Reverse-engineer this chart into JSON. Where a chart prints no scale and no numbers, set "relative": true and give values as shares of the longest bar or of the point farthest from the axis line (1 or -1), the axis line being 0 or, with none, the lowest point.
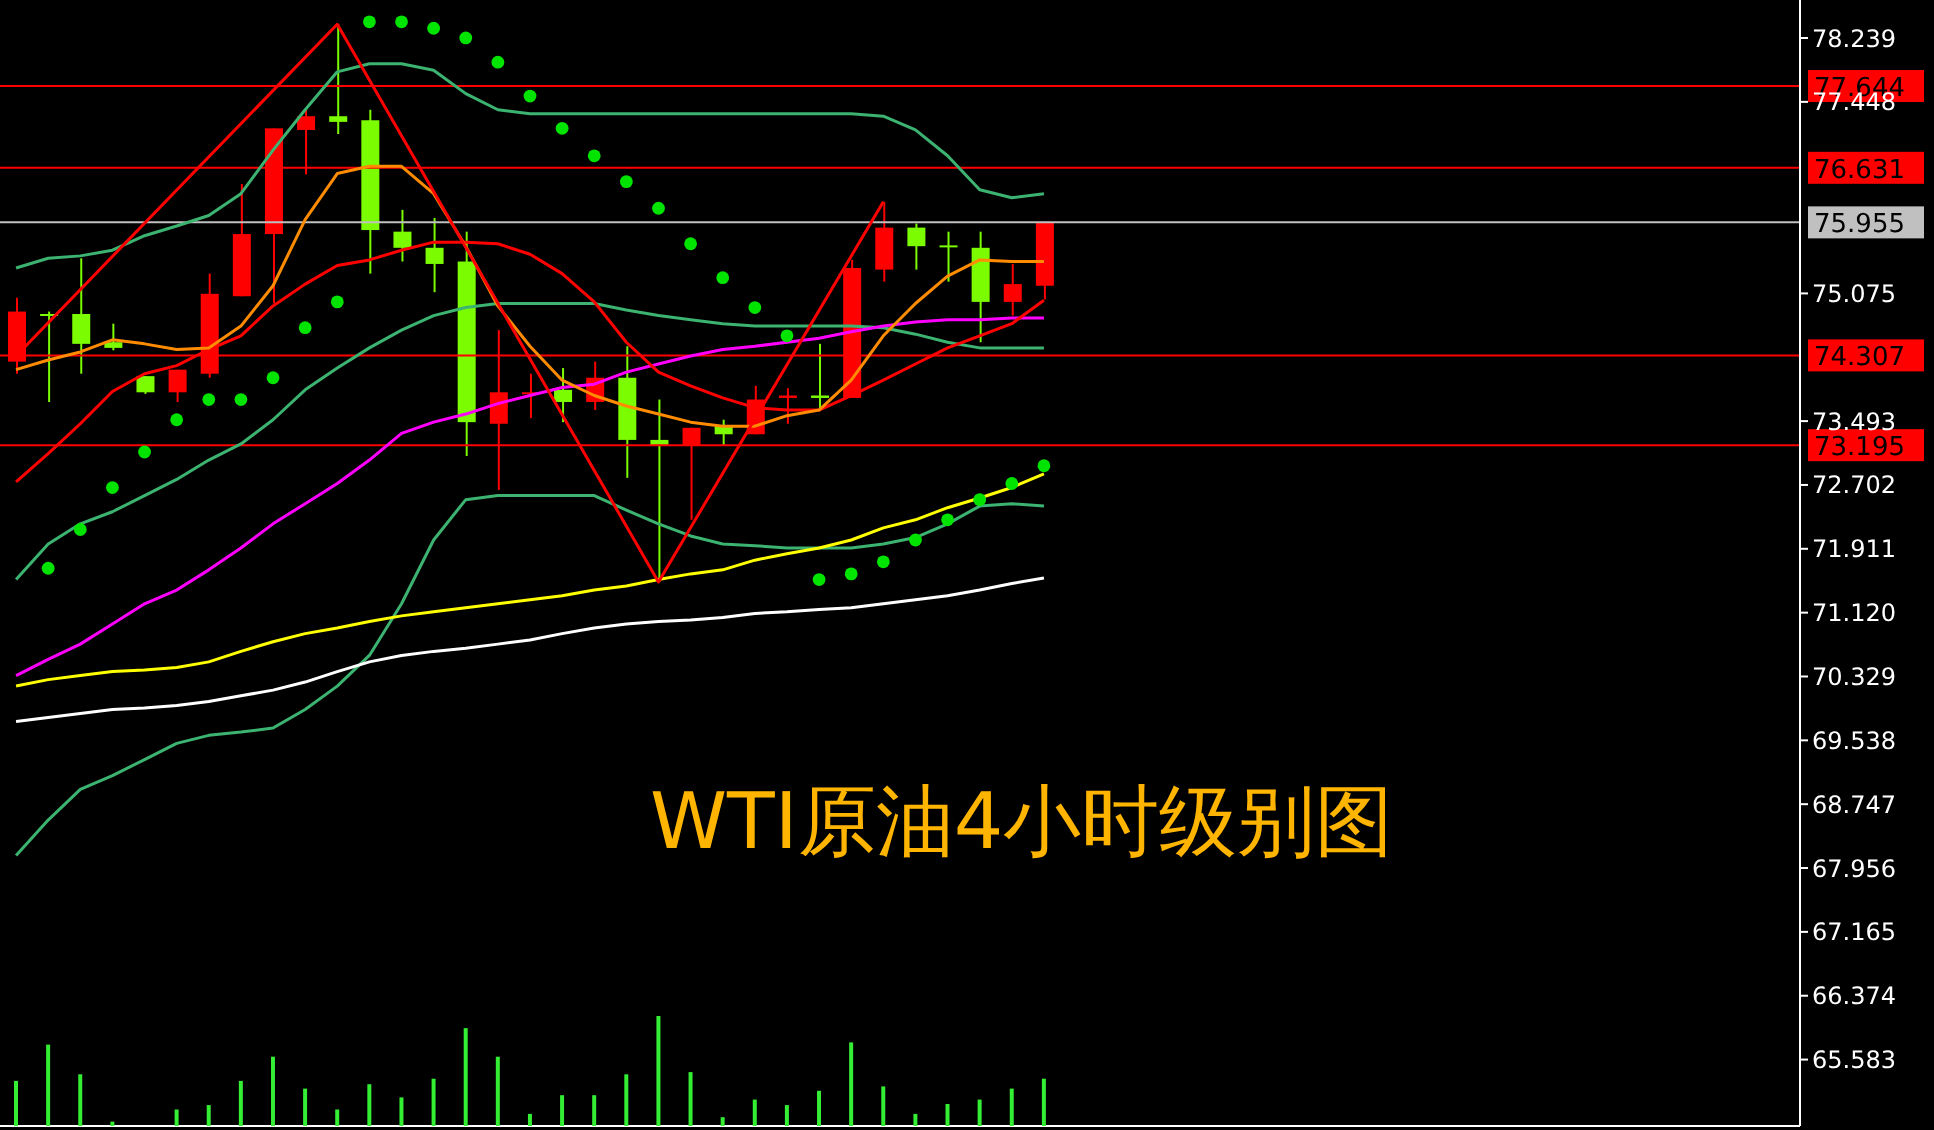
{
  "chart_data": [
    {
      "type": "candlestick",
      "title": "WTI原油4小时级别图",
      "tick_labels": "y",
      "categories": [
        null,
        null,
        null,
        null,
        null,
        null,
        null,
        null,
        null,
        null,
        null,
        null,
        null,
        null,
        null,
        null,
        null,
        null,
        null,
        null,
        null,
        null,
        null,
        null,
        null,
        null,
        null,
        null,
        null,
        null,
        null,
        null,
        null
      ],
      "ylim": [
        64.76,
        78.71
      ],
      "yticks": [
        78.239,
        77.448,
        75.075,
        73.493,
        72.702,
        71.911,
        {
          "value": 71.12,
          "label": "71.120"
        },
        70.329,
        69.538,
        68.747,
        67.956,
        67.165,
        66.374,
        65.583
      ],
      "ref_lines": [
        {
          "axis": "y",
          "value": 77.644,
          "label": "77.644",
          "color": "#ff0000"
        },
        {
          "axis": "y",
          "value": 76.631,
          "label": "76.631",
          "color": "#ff0000"
        },
        {
          "axis": "y",
          "value": 75.955,
          "label": "75.955",
          "color": "#c0c0c0"
        },
        {
          "axis": "y",
          "value": 74.307,
          "label": "74.307",
          "color": "#ff0000"
        },
        {
          "axis": "y",
          "value": 73.195,
          "label": "73.195",
          "color": "#ff0000"
        }
      ],
      "series": [
        {
          "type": "line",
          "color": "#3cb371",
          "values": [
            75.39,
            75.51,
            75.54,
            75.61,
            75.79,
            75.91,
            76.04,
            76.31,
            76.85,
            77.35,
            77.82,
            77.92,
            77.92,
            77.84,
            77.55,
            77.35,
            77.3,
            77.3,
            77.3,
            77.3,
            77.3,
            77.3,
            77.3,
            77.3,
            77.3,
            77.3,
            77.3,
            77.27,
            77.1,
            76.78,
            76.36,
            76.26,
            76.31
          ]
        },
        {
          "type": "line",
          "color": "#3cb371",
          "values": [
            71.53,
            71.97,
            72.22,
            72.37,
            72.57,
            72.77,
            73.01,
            73.21,
            73.51,
            73.88,
            74.15,
            74.4,
            74.62,
            74.8,
            74.9,
            74.95,
            74.95,
            74.95,
            74.95,
            74.87,
            74.8,
            74.75,
            74.7,
            74.67,
            74.67,
            74.67,
            74.67,
            74.65,
            74.57,
            74.47,
            74.4,
            74.4,
            74.4
          ]
        },
        {
          "type": "line",
          "color": "#3cb371",
          "values": [
            68.11,
            68.55,
            68.93,
            69.1,
            69.3,
            69.5,
            69.6,
            69.64,
            69.69,
            69.92,
            70.21,
            70.59,
            71.23,
            72.02,
            72.52,
            72.57,
            72.57,
            72.57,
            72.57,
            72.39,
            72.22,
            72.07,
            71.97,
            71.95,
            71.92,
            71.92,
            71.92,
            71.97,
            72.05,
            72.22,
            72.44,
            72.47,
            72.44
          ]
        },
        {
          "type": "line",
          "color": "#ffffff",
          "values": [
            69.77,
            69.82,
            69.87,
            69.92,
            69.94,
            69.97,
            70.02,
            70.09,
            70.16,
            70.26,
            70.39,
            70.51,
            70.59,
            70.64,
            70.68,
            70.73,
            70.78,
            70.86,
            70.93,
            70.98,
            71.01,
            71.03,
            71.06,
            71.11,
            71.13,
            71.16,
            71.18,
            71.23,
            71.28,
            71.33,
            71.4,
            71.48,
            71.55
          ]
        },
        {
          "type": "line",
          "color": "#ffff00",
          "values": [
            70.21,
            70.29,
            70.34,
            70.39,
            70.41,
            70.44,
            70.51,
            70.64,
            70.76,
            70.86,
            70.93,
            71.01,
            71.08,
            71.13,
            71.18,
            71.23,
            71.28,
            71.33,
            71.4,
            71.45,
            71.53,
            71.6,
            71.65,
            71.77,
            71.85,
            71.92,
            72.02,
            72.17,
            72.27,
            72.42,
            72.54,
            72.67,
            72.84
          ]
        },
        {
          "type": "line",
          "color": "#ff00ff",
          "values": [
            70.34,
            70.54,
            70.73,
            70.98,
            71.23,
            71.4,
            71.65,
            71.92,
            72.22,
            72.47,
            72.72,
            73.01,
            73.34,
            73.48,
            73.58,
            73.71,
            73.81,
            73.91,
            73.95,
            74.1,
            74.2,
            74.3,
            74.38,
            74.42,
            74.47,
            74.52,
            74.6,
            74.67,
            74.72,
            74.75,
            74.75,
            74.77,
            74.77
          ]
        },
        {
          "type": "line",
          "color": "#ff0000",
          "values": [
            72.74,
            73.09,
            73.46,
            73.86,
            74.08,
            74.18,
            74.38,
            74.55,
            74.92,
            75.19,
            75.42,
            75.49,
            75.61,
            75.71,
            75.71,
            75.69,
            75.56,
            75.32,
            74.97,
            74.47,
            74.1,
            73.93,
            73.78,
            73.66,
            73.63,
            73.63,
            73.81,
            74.0,
            74.2,
            74.4,
            74.55,
            74.7,
            74.99
          ]
        },
        {
          "type": "line",
          "color": "#ff8c00",
          "values": [
            74.13,
            74.25,
            74.35,
            74.5,
            74.45,
            74.38,
            74.4,
            74.67,
            75.17,
            75.99,
            76.56,
            76.65,
            76.65,
            76.31,
            75.66,
            74.92,
            74.42,
            74.0,
            73.81,
            73.68,
            73.58,
            73.48,
            73.43,
            73.43,
            73.56,
            73.63,
            74.0,
            74.55,
            74.95,
            75.29,
            75.49,
            75.47,
            75.47
          ]
        },
        {
          "type": "line",
          "color": "#ff0000",
          "values": [
            74.3,
            null,
            null,
            null,
            null,
            null,
            null,
            null,
            null,
            null,
            78.41,
            null,
            null,
            null,
            null,
            null,
            null,
            null,
            null,
            null,
            71.5,
            null,
            null,
            null,
            null,
            null,
            null,
            76.21,
            null,
            null,
            null,
            null,
            null
          ]
        },
        {
          "type": "scatter",
          "color": "#00e400",
          "marker": "circle",
          "values": [
            null,
            71.67,
            72.15,
            72.67,
            73.11,
            73.51,
            73.76,
            73.76,
            74.03,
            74.65,
            74.97,
            78.44,
            78.44,
            78.36,
            78.24,
            77.94,
            77.52,
            77.12,
            76.78,
            76.46,
            76.13,
            75.69,
            75.27,
            74.9,
            74.55,
            71.53,
            71.6,
            71.75,
            72.02,
            72.27,
            72.52,
            72.72,
            72.94
          ]
        },
        {
          "type": "candlestick",
          "ohlc": [
            [
              74.23,
              75.02,
              74.08,
              74.85
            ],
            [
              74.82,
              74.85,
              73.73,
              74.81
            ],
            [
              74.82,
              75.51,
              74.08,
              74.45
            ],
            [
              74.47,
              74.7,
              74.37,
              74.4
            ],
            [
              74.05,
              74.05,
              73.83,
              73.85
            ],
            [
              73.85,
              74.13,
              73.73,
              74.13
            ],
            [
              74.08,
              75.32,
              74.03,
              75.07
            ],
            [
              75.04,
              76.43,
              75.04,
              75.81
            ],
            [
              75.81,
              77.12,
              74.95,
              77.12
            ],
            [
              77.1,
              77.37,
              76.55,
              77.27
            ],
            [
              77.27,
              78.41,
              77.05,
              77.2
            ],
            [
              77.22,
              77.35,
              75.32,
              75.86
            ],
            [
              75.84,
              76.11,
              75.47,
              75.64
            ],
            [
              75.64,
              76.01,
              75.09,
              75.44
            ],
            [
              75.47,
              75.84,
              73.06,
              73.48
            ],
            [
              73.46,
              74.62,
              72.64,
              73.85
            ],
            [
              73.84,
              74.08,
              73.53,
              73.85
            ],
            [
              73.88,
              74.15,
              73.48,
              73.73
            ],
            [
              73.73,
              74.23,
              73.63,
              74.03
            ],
            [
              74.03,
              74.42,
              72.79,
              73.26
            ],
            [
              73.26,
              73.76,
              71.5,
              73.19
            ],
            [
              73.19,
              73.41,
              72.27,
              73.41
            ],
            [
              73.43,
              73.51,
              73.19,
              73.33
            ],
            [
              73.33,
              73.93,
              73.33,
              73.76
            ],
            [
              73.78,
              73.9,
              73.46,
              73.81
            ],
            [
              73.81,
              74.45,
              73.63,
              73.78
            ],
            [
              73.78,
              75.49,
              73.78,
              75.39
            ],
            [
              75.37,
              76.21,
              75.22,
              75.89
            ],
            [
              75.89,
              75.94,
              75.37,
              75.66
            ],
            [
              75.67,
              75.84,
              75.22,
              75.66
            ],
            [
              75.64,
              75.84,
              74.47,
              74.97
            ],
            [
              74.97,
              75.44,
              74.8,
              75.19
            ],
            [
              75.17,
              75.96,
              75.0,
              75.96
            ]
          ],
          "colors": [
            "#ff0000",
            "#7cfc00",
            "#7cfc00",
            "#7cfc00",
            "#7cfc00",
            "#ff0000",
            "#ff0000",
            "#ff0000",
            "#ff0000",
            "#ff0000",
            "#7cfc00",
            "#7cfc00",
            "#7cfc00",
            "#7cfc00",
            "#7cfc00",
            "#ff0000",
            "#ff0000",
            "#7cfc00",
            "#ff0000",
            "#7cfc00",
            "#7cfc00",
            "#ff0000",
            "#7cfc00",
            "#ff0000",
            "#ff0000",
            "#7cfc00",
            "#ff0000",
            "#ff0000",
            "#7cfc00",
            "#7cfc00",
            "#7cfc00",
            "#ff0000",
            "#ff0000"
          ]
        }
      ]
    },
    {
      "type": "bar",
      "relative": true,
      "color": "#33ee33",
      "categories": [
        null,
        null,
        null,
        null,
        null,
        null,
        null,
        null,
        null,
        null,
        null,
        null,
        null,
        null,
        null,
        null,
        null,
        null,
        null,
        null,
        null,
        null,
        null,
        null,
        null,
        null,
        null,
        null,
        null,
        null,
        null,
        null,
        null
      ],
      "values": [
        0.41,
        0.74,
        0.47,
        0.04,
        0,
        0.15,
        0.19,
        0.41,
        0.63,
        0.34,
        0.15,
        0.38,
        0.26,
        0.43,
        0.89,
        0.63,
        0.11,
        0.28,
        0.28,
        0.47,
        1,
        0.49,
        0.08,
        0.24,
        0.19,
        0.32,
        0.76,
        0.36,
        0.11,
        0.2,
        0.24,
        0.34,
        0.43
      ]
    }
  ]
}
